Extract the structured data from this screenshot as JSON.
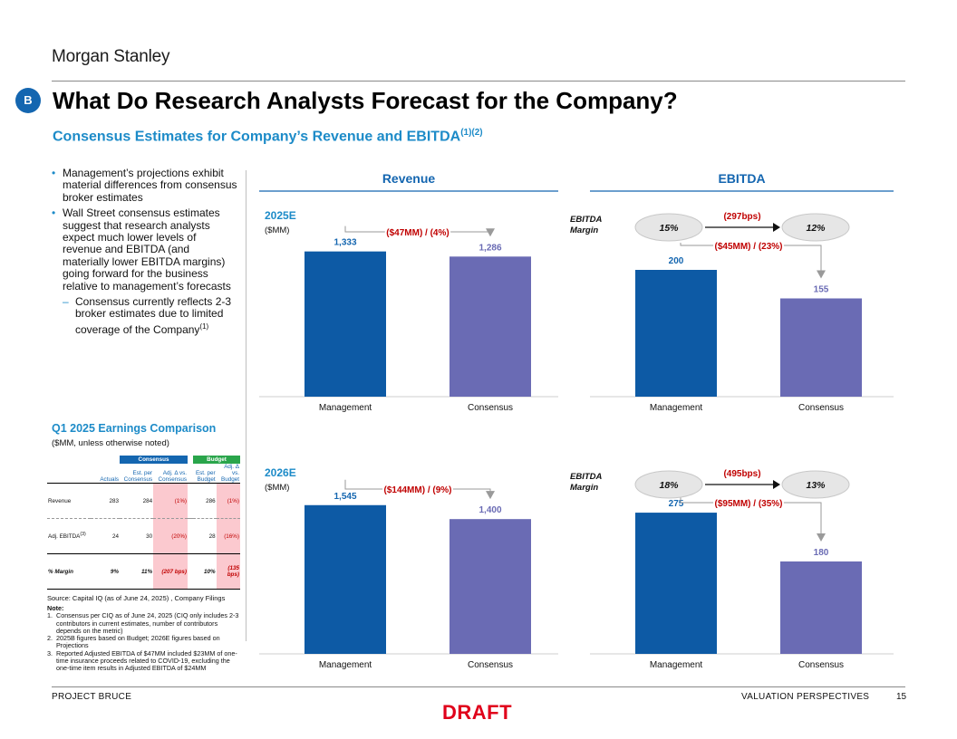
{
  "header": {
    "logo_text": "Morgan Stanley",
    "badge": "B",
    "title": "What Do Research Analysts Forecast for the Company?",
    "subtitle": "Consensus Estimates for Company’s Revenue and EBITDA",
    "subtitle_sup": "(1)(2)"
  },
  "bullets": [
    "Management’s projections exhibit material differences from consensus broker estimates",
    "Wall Street consensus estimates suggest that research analysts expect much lower levels of revenue and EBITDA (and materially lower EBITDA margins) going forward for the business relative to management’s forecasts"
  ],
  "subbullet": "Consensus currently reflects 2-3 broker estimates due to limited coverage of the Company",
  "subbullet_sup": "(1)",
  "q1": {
    "title": "Q1 2025 Earnings Comparison",
    "subtitle": "($MM, unless otherwise noted)",
    "group_consensus": "Consensus",
    "group_budget": "Budget",
    "headers": [
      "Actuals",
      "Est. per Consensus",
      "Adj. Δ vs. Consensus",
      "Est. per Budget",
      "Adj. Δ vs. Budget"
    ],
    "rows": [
      {
        "label": "Revenue",
        "sup": "",
        "values": [
          "283",
          "284",
          "(1%)",
          "286",
          "(1%)"
        ]
      },
      {
        "label": "Adj. EBITDA",
        "sup": "(3)",
        "values": [
          "24",
          "30",
          "(20%)",
          "28",
          "(16%)"
        ]
      },
      {
        "label": "% Margin",
        "sup": "",
        "values": [
          "9%",
          "11%",
          "(207 bps)",
          "10%",
          "(135 bps)"
        ]
      }
    ]
  },
  "source": "Source: Capital IQ (as of June 24, 2025) , Company Filings",
  "notes": {
    "heading": "Note:",
    "items": [
      "Consensus per CIQ as of June 24, 2025 (CIQ only includes 2-3 contributors in current estimates, number of contributors depends on the metric)",
      "2025B figures based on Budget; 2026E figures based on Projections",
      "Reported Adjusted EBITDA of $47MM included $23MM of one-time insurance proceeds related to COVID-19, excluding the one-time item results in Adjusted EBITDA of $24MM"
    ]
  },
  "colors": {
    "management_bar": "#0d5aa5",
    "consensus_bar": "#6a6bb4",
    "accent_blue": "#1d8bc8",
    "delta_red": "#c00000"
  },
  "chart_data": [
    {
      "type": "bar",
      "title": "Revenue",
      "period": "2025E",
      "unit": "($MM)",
      "categories": [
        "Management",
        "Consensus"
      ],
      "values": [
        1333,
        1286
      ],
      "labels": [
        "1,333",
        "1,286"
      ],
      "delta": "($47MM) / (4%)"
    },
    {
      "type": "bar",
      "title": "EBITDA",
      "categories": [
        "Management",
        "Consensus"
      ],
      "values": [
        200,
        155
      ],
      "labels": [
        "200",
        "155"
      ],
      "delta": "($45MM) / (23%)",
      "margin_label": "EBITDA Margin",
      "margins": [
        "15%",
        "12%"
      ],
      "margin_delta": "(297bps)"
    },
    {
      "type": "bar",
      "period": "2026E",
      "unit": "($MM)",
      "categories": [
        "Management",
        "Consensus"
      ],
      "values": [
        1545,
        1400
      ],
      "labels": [
        "1,545",
        "1,400"
      ],
      "delta": "($144MM) / (9%)"
    },
    {
      "type": "bar",
      "categories": [
        "Management",
        "Consensus"
      ],
      "values": [
        275,
        180
      ],
      "labels": [
        "275",
        "180"
      ],
      "delta": "($95MM) / (35%)",
      "margin_label": "EBITDA Margin",
      "margins": [
        "18%",
        "13%"
      ],
      "margin_delta": "(495bps)"
    }
  ],
  "footer": {
    "left": "PROJECT BRUCE",
    "right": "VALUATION PERSPECTIVES",
    "page": "15",
    "draft": "DRAFT"
  }
}
